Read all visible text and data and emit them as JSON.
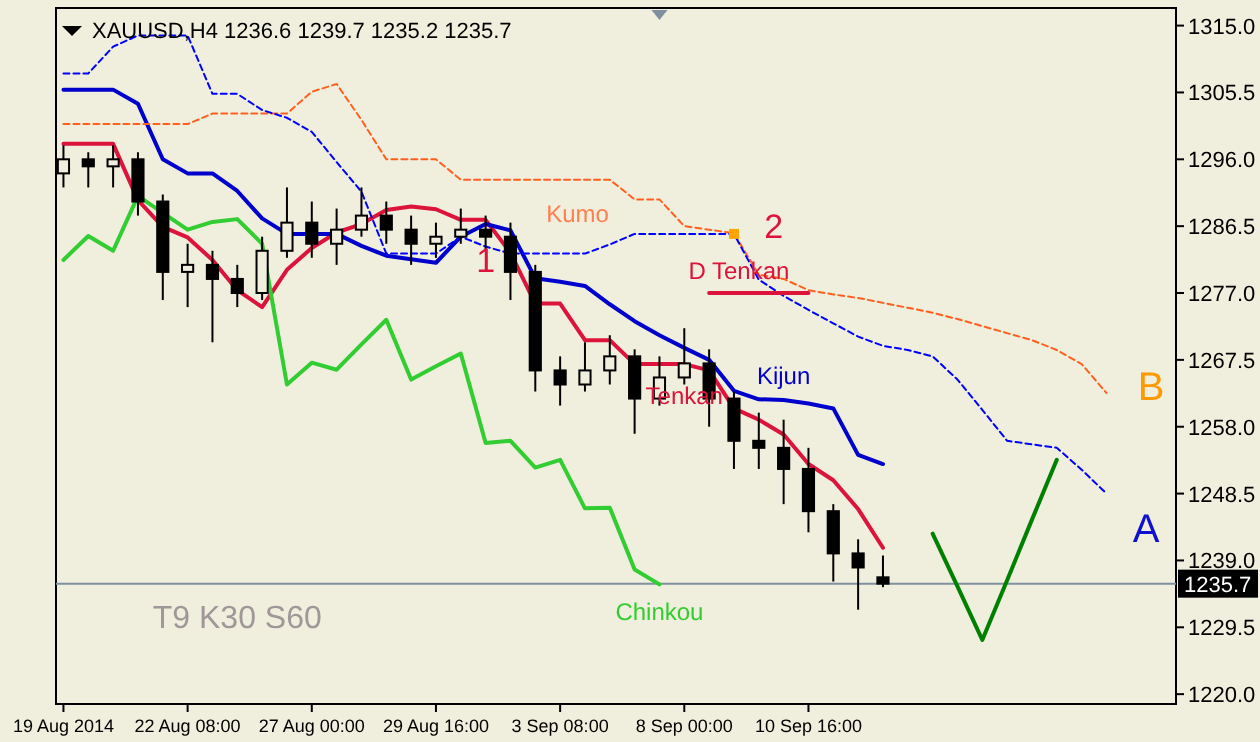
{
  "chart_data": {
    "type": "candlestick",
    "title": "XAUUSD,H4  1236.6 1239.7 1235.2 1235.7",
    "color": "#000000",
    "categories": [
      "19 Aug 2014",
      null,
      null,
      null,
      null,
      "22 Aug 08:00",
      null,
      null,
      null,
      null,
      "27 Aug 00:00",
      null,
      null,
      null,
      null,
      "29 Aug 16:00",
      null,
      null,
      null,
      null,
      "3 Sep 08:00",
      null,
      null,
      null,
      null,
      "8 Sep 00:00",
      null,
      null,
      null,
      null,
      "10 Sep 16:00",
      null,
      null,
      null,
      null,
      null,
      null,
      null,
      null,
      null,
      null,
      null,
      null
    ],
    "ohlc": [
      [
        1294,
        1298,
        1292,
        1296
      ],
      [
        1296,
        1297,
        1292,
        1295
      ],
      [
        1295,
        1298,
        1292,
        1296
      ],
      [
        1296,
        1297,
        1288,
        1290
      ],
      [
        1290,
        1291,
        1276,
        1280
      ],
      [
        1280,
        1284,
        1275,
        1281
      ],
      [
        1281,
        1283,
        1270,
        1279
      ],
      [
        1279,
        1281,
        1275,
        1277
      ],
      [
        1277,
        1285,
        1276,
        1283
      ],
      [
        1283,
        1292,
        1282,
        1287
      ],
      [
        1287,
        1290,
        1282,
        1284
      ],
      [
        1284,
        1289,
        1281,
        1286
      ],
      [
        1286,
        1292,
        1285,
        1288
      ],
      [
        1288,
        1290,
        1284,
        1286
      ],
      [
        1286,
        1288,
        1281,
        1284
      ],
      [
        1284,
        1287,
        1282,
        1285
      ],
      [
        1285,
        1289,
        1284,
        1286
      ],
      [
        1286,
        1288,
        1283,
        1285
      ],
      [
        1285,
        1287,
        1276,
        1280
      ],
      [
        1280,
        1281,
        1263,
        1266
      ],
      [
        1266,
        1268,
        1261,
        1264
      ],
      [
        1264,
        1270,
        1263,
        1266
      ],
      [
        1266,
        1271,
        1264,
        1268
      ],
      [
        1268,
        1269,
        1257,
        1262
      ],
      [
        1262,
        1268,
        1261,
        1265
      ],
      [
        1265,
        1272,
        1264,
        1267
      ],
      [
        1267,
        1269,
        1258,
        1262
      ],
      [
        1262,
        1263,
        1252,
        1256
      ],
      [
        1256,
        1260,
        1252,
        1255
      ],
      [
        1255,
        1259,
        1247,
        1252
      ],
      [
        1252,
        1255,
        1243,
        1246
      ],
      [
        1246,
        1247,
        1236,
        1240
      ],
      [
        1240,
        1242,
        1232,
        1238
      ],
      [
        1236.6,
        1239.7,
        1235.2,
        1235.7
      ],
      null,
      null,
      null,
      null,
      null,
      null,
      null,
      null,
      null
    ],
    "series": [
      {
        "type": "line",
        "name": "Tenkan",
        "color": "#dc143c",
        "values": [
          1298.2,
          1298.2,
          1298.2,
          1290.2,
          1286.4,
          1284.9,
          1281.7,
          1277.4,
          1275,
          1280.3,
          1283.4,
          1285.6,
          1286.8,
          1288.8,
          1289.3,
          1288.9,
          1287.4,
          1287.4,
          1282.7,
          1275.5,
          1275.5,
          1270.3,
          1270.3,
          1266.9,
          1266.9,
          1266.9,
          1266,
          1260.6,
          1259,
          1256.9,
          1252.7,
          1250.4,
          1246.3,
          1240.8,
          null,
          null,
          null,
          null,
          null,
          null,
          null,
          null,
          null
        ]
      },
      {
        "type": "line",
        "name": "Kijun",
        "color": "#0000cd",
        "values": [
          1305.9,
          1305.9,
          1305.9,
          1303.9,
          1296,
          1294,
          1294,
          1291.5,
          1287.6,
          1285.4,
          1285.4,
          1285.4,
          1283.7,
          1282.3,
          1281.8,
          1281.3,
          1285,
          1286.8,
          1285.9,
          1279.1,
          1278.6,
          1278,
          1275.4,
          1273,
          1271,
          1269.2,
          1267.5,
          1263.1,
          1261.9,
          1261.8,
          1261.3,
          1260.6,
          1254,
          1252.7,
          null,
          null,
          null,
          null,
          null,
          null,
          null,
          null,
          null
        ]
      },
      {
        "type": "line",
        "name": "Chinkou",
        "color": "#32cd32",
        "values": [
          1281.7,
          1285.1,
          1283,
          1290.8,
          1288.4,
          1286,
          1287.1,
          1287.5,
          1284,
          1264,
          1267.1,
          1266.1,
          1269.7,
          1273.2,
          1264.7,
          1266.6,
          1268.4,
          1255.7,
          1256,
          1252.2,
          1253.3,
          1246.4,
          1246.5,
          1237.7,
          1235.6,
          null,
          null,
          null,
          null,
          null,
          null,
          null,
          null,
          null,
          null,
          null,
          null,
          null,
          null,
          null,
          null,
          null,
          null
        ]
      },
      {
        "type": "line",
        "color": "#ff6020",
        "line_style": "dashed",
        "values": [
          1301,
          1301,
          1301,
          1301,
          1301,
          1301,
          1302.5,
          1302.5,
          1302.5,
          1302.5,
          1305.6,
          1306.7,
          1301.6,
          1296,
          1296,
          1296,
          1293.1,
          1293.1,
          1293.1,
          1293.1,
          1293.1,
          1293.1,
          1293.1,
          1290.3,
          1290.3,
          1286.5,
          1286,
          1285.5,
          1279.6,
          1279,
          1277.4,
          1276.8,
          1276.3,
          1275.6,
          1274.9,
          1274.2,
          1273.3,
          1272.3,
          1271.3,
          1270.3,
          1268.9,
          1266.9,
          1262.8
        ]
      },
      {
        "type": "line",
        "color": "#0000ff",
        "line_style": "dashed",
        "values": [
          1308.2,
          1308.2,
          1312,
          1313.6,
          1313.6,
          1313.6,
          1305.3,
          1305.3,
          1303,
          1301.9,
          1299.9,
          1295.6,
          1291.4,
          1282.6,
          1282.6,
          1282.6,
          1285,
          1283.6,
          1282.6,
          1282.6,
          1282.6,
          1282.6,
          1283.9,
          1285.4,
          1285.4,
          1285.4,
          1285.4,
          1285.4,
          1278.9,
          1276.6,
          1274.6,
          1272.7,
          1270.8,
          1269.5,
          1268.9,
          1268,
          1264.7,
          1260.4,
          1256,
          1255.5,
          1255,
          1251.9,
          1248.5
        ]
      },
      {
        "type": "line",
        "color": "#dc143c",
        "values": [
          null,
          null,
          null,
          null,
          null,
          null,
          null,
          null,
          null,
          null,
          null,
          null,
          null,
          null,
          null,
          null,
          null,
          null,
          null,
          null,
          null,
          null,
          null,
          null,
          null,
          null,
          1277,
          1277,
          1277,
          1277,
          1277,
          null,
          null,
          null,
          null,
          null,
          null,
          null,
          null,
          null,
          null,
          null,
          null
        ]
      },
      {
        "type": "line",
        "color": "#008000",
        "values": [
          null,
          null,
          null,
          null,
          null,
          null,
          null,
          null,
          null,
          null,
          null,
          null,
          null,
          null,
          null,
          null,
          null,
          null,
          null,
          null,
          null,
          null,
          null,
          null,
          null,
          null,
          null,
          null,
          null,
          null,
          null,
          null,
          null,
          null,
          null,
          1242.8,
          1235.3,
          1227.7,
          1236.2,
          1244.8,
          1253.3,
          null,
          null
        ]
      },
      {
        "type": "scatter",
        "color": "#ffa500",
        "marker": "square",
        "values": [
          null,
          null,
          null,
          null,
          null,
          null,
          null,
          null,
          null,
          null,
          null,
          null,
          null,
          null,
          null,
          null,
          null,
          null,
          null,
          null,
          null,
          null,
          null,
          null,
          null,
          null,
          null,
          1285.4,
          null,
          null,
          null,
          null,
          null,
          null,
          null,
          null,
          null,
          null,
          null,
          null,
          null,
          null,
          null
        ]
      }
    ],
    "ylim": [
      1218.6,
      1317.5
    ],
    "yticks": [
      {
        "value": 1220,
        "label": "1220.0"
      },
      {
        "value": 1229.5,
        "label": "1229.5"
      },
      {
        "value": 1239,
        "label": "1239.0"
      },
      {
        "value": 1248.5,
        "label": "1248.5"
      },
      {
        "value": 1258,
        "label": "1258.0"
      },
      {
        "value": 1267.5,
        "label": "1267.5"
      },
      {
        "value": 1277,
        "label": "1277.0"
      },
      {
        "value": 1286.5,
        "label": "1286.5"
      },
      {
        "value": 1296,
        "label": "1296.0"
      },
      {
        "value": 1305.5,
        "label": "1305.5"
      },
      {
        "value": 1315,
        "label": "1315.0"
      }
    ],
    "ref_lines": [
      {
        "axis": "y",
        "value": 1235.7,
        "label": "1235.7",
        "color": "#8090a0"
      }
    ],
    "annotations": [
      "Kumo",
      "1",
      "2",
      "D Tenkan",
      "A",
      "B",
      "T9 K30 S60"
    ],
    "grid": false
  }
}
